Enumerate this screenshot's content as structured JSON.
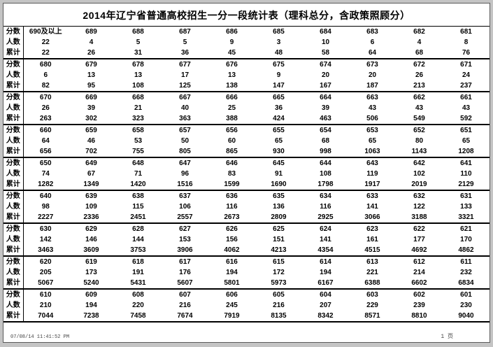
{
  "title": "2014年辽宁省普通高校招生一分一段统计表（理科总分，含政策照顾分）",
  "row_labels": {
    "score": "分数",
    "count": "人数",
    "cumulative": "累计"
  },
  "blocks": [
    {
      "scores": [
        "690及以上",
        "689",
        "688",
        "687",
        "686",
        "685",
        "684",
        "683",
        "682",
        "681"
      ],
      "counts": [
        22,
        4,
        5,
        5,
        9,
        3,
        10,
        6,
        4,
        8
      ],
      "cumulative": [
        22,
        26,
        31,
        36,
        45,
        48,
        58,
        64,
        68,
        76
      ]
    },
    {
      "scores": [
        "680",
        "679",
        "678",
        "677",
        "676",
        "675",
        "674",
        "673",
        "672",
        "671"
      ],
      "counts": [
        6,
        13,
        13,
        17,
        13,
        9,
        20,
        20,
        26,
        24
      ],
      "cumulative": [
        82,
        95,
        108,
        125,
        138,
        147,
        167,
        187,
        213,
        237
      ]
    },
    {
      "scores": [
        "670",
        "669",
        "668",
        "667",
        "666",
        "665",
        "664",
        "663",
        "662",
        "661"
      ],
      "counts": [
        26,
        39,
        21,
        40,
        25,
        36,
        39,
        43,
        43,
        43
      ],
      "cumulative": [
        263,
        302,
        323,
        363,
        388,
        424,
        463,
        506,
        549,
        592
      ]
    },
    {
      "scores": [
        "660",
        "659",
        "658",
        "657",
        "656",
        "655",
        "654",
        "653",
        "652",
        "651"
      ],
      "counts": [
        64,
        46,
        53,
        50,
        60,
        65,
        68,
        65,
        80,
        65
      ],
      "cumulative": [
        656,
        702,
        755,
        805,
        865,
        930,
        998,
        1063,
        1143,
        1208
      ]
    },
    {
      "scores": [
        "650",
        "649",
        "648",
        "647",
        "646",
        "645",
        "644",
        "643",
        "642",
        "641"
      ],
      "counts": [
        74,
        67,
        71,
        96,
        83,
        91,
        108,
        119,
        102,
        110
      ],
      "cumulative": [
        1282,
        1349,
        1420,
        1516,
        1599,
        1690,
        1798,
        1917,
        2019,
        2129
      ]
    },
    {
      "scores": [
        "640",
        "639",
        "638",
        "637",
        "636",
        "635",
        "634",
        "633",
        "632",
        "631"
      ],
      "counts": [
        98,
        109,
        115,
        106,
        116,
        136,
        116,
        141,
        122,
        133
      ],
      "cumulative": [
        2227,
        2336,
        2451,
        2557,
        2673,
        2809,
        2925,
        3066,
        3188,
        3321
      ]
    },
    {
      "scores": [
        "630",
        "629",
        "628",
        "627",
        "626",
        "625",
        "624",
        "623",
        "622",
        "621"
      ],
      "counts": [
        142,
        146,
        144,
        153,
        156,
        151,
        141,
        161,
        177,
        170
      ],
      "cumulative": [
        3463,
        3609,
        3753,
        3906,
        4062,
        4213,
        4354,
        4515,
        4692,
        4862
      ]
    },
    {
      "scores": [
        "620",
        "619",
        "618",
        "617",
        "616",
        "615",
        "614",
        "613",
        "612",
        "611"
      ],
      "counts": [
        205,
        173,
        191,
        176,
        194,
        172,
        194,
        221,
        214,
        232
      ],
      "cumulative": [
        5067,
        5240,
        5431,
        5607,
        5801,
        5973,
        6167,
        6388,
        6602,
        6834
      ]
    },
    {
      "scores": [
        "610",
        "609",
        "608",
        "607",
        "606",
        "605",
        "604",
        "603",
        "602",
        "601"
      ],
      "counts": [
        210,
        194,
        220,
        216,
        245,
        216,
        207,
        229,
        239,
        230
      ],
      "cumulative": [
        7044,
        7238,
        7458,
        7674,
        7919,
        8135,
        8342,
        8571,
        8810,
        9040
      ]
    }
  ],
  "footer": {
    "timestamp": "07/08/14 11:41:52 PM",
    "page_label": "1 页"
  }
}
